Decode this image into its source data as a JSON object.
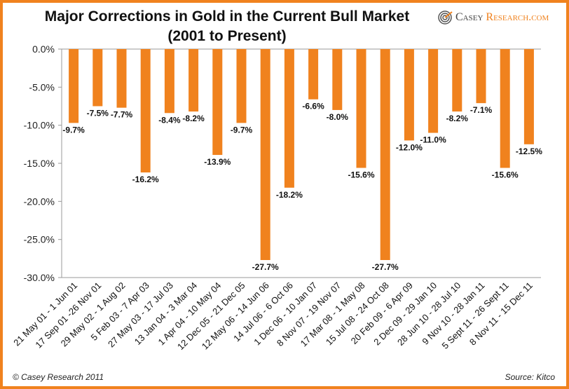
{
  "chart_data": {
    "type": "bar",
    "title": "Major Corrections in Gold in the Current Bull Market",
    "subtitle": "(2001 to Present)",
    "categories": [
      "21 May 01 - 1 Jun 01",
      "17 Sep 01 -26 Nov 01",
      "29 May 02 - 1 Aug 02",
      "5 Feb 03 - 7 Apr 03",
      "27 May 03 - 17 Jul 03",
      "13 Jan 04 - 3 Mar 04",
      "1 Apr 04 - 10 May 04",
      "12 Dec 05 - 21 Dec 05",
      "12 May 06 - 14 Jun 06",
      "14 Jul 06  - 6 Oct 06",
      "1 Dec 06 - 10 Jan 07",
      "8 Nov 07 - 19 Nov 07",
      "17 Mar 08 - 1 May 08",
      "15 Jul 08 - 24 Oct 08",
      "20 Feb 09 - 6 Apr 09",
      "2 Dec 09 - 29 Jan 10",
      "28 Jun 10 - 28 Jul 10",
      "9 Nov 10 - 28 Jan 11",
      "5 Sept 11 - 26 Sept 11",
      "8 Nov 11 - 15 Dec 11"
    ],
    "values": [
      -9.7,
      -7.5,
      -7.7,
      -16.2,
      -8.4,
      -8.2,
      -13.9,
      -9.7,
      -27.7,
      -18.2,
      -6.6,
      -8.0,
      -15.6,
      -27.7,
      -12.0,
      -11.0,
      -8.2,
      -7.1,
      -15.6,
      -12.5
    ],
    "data_labels": [
      "-9.7%",
      "-7.5%",
      "-7.7%",
      "-16.2%",
      "-8.4%",
      "-8.2%",
      "-13.9%",
      "-9.7%",
      "-27.7%",
      "-18.2%",
      "-6.6%",
      "-8.0%",
      "-15.6%",
      "-27.7%",
      "-12.0%",
      "-11.0%",
      "-8.2%",
      "-7.1%",
      "-15.6%",
      "-12.5%"
    ],
    "yticks": [
      "0.0%",
      "-5.0%",
      "-10.0%",
      "-15.0%",
      "-20.0%",
      "-25.0%",
      "-30.0%"
    ],
    "ylim": [
      -30,
      0
    ],
    "xlabel": "",
    "ylabel": "",
    "grid": false,
    "bar_color": "#f0821e"
  },
  "logo": {
    "part1": "Casey",
    "part2": "Research.com"
  },
  "footer": {
    "copyright": "© Casey Research 2011",
    "source": "Source: Kitco"
  }
}
